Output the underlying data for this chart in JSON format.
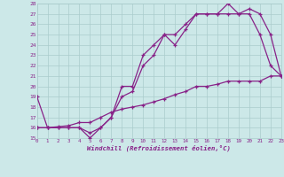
{
  "xlabel": "Windchill (Refroidissement éolien,°C)",
  "xlim": [
    0,
    23
  ],
  "ylim": [
    15,
    28
  ],
  "yticks": [
    15,
    16,
    17,
    18,
    19,
    20,
    21,
    22,
    23,
    24,
    25,
    26,
    27,
    28
  ],
  "xticks": [
    0,
    1,
    2,
    3,
    4,
    5,
    6,
    7,
    8,
    9,
    10,
    11,
    12,
    13,
    14,
    15,
    16,
    17,
    18,
    19,
    20,
    21,
    22,
    23
  ],
  "bg_color": "#cce8e8",
  "grid_color": "#aacccc",
  "line_color": "#882288",
  "line1_x": [
    0,
    1,
    2,
    3,
    4,
    5,
    6,
    7,
    8,
    9,
    10,
    11,
    12,
    13,
    14,
    15,
    16,
    17,
    18,
    19,
    20,
    21,
    22,
    23
  ],
  "line1_y": [
    19,
    16,
    16,
    16,
    16,
    15,
    16,
    17,
    20,
    20,
    23,
    24,
    25,
    24,
    25.5,
    27,
    27,
    27,
    28,
    27,
    27,
    25,
    22,
    21
  ],
  "line2_x": [
    0,
    1,
    2,
    3,
    4,
    5,
    6,
    7,
    8,
    9,
    10,
    11,
    12,
    13,
    14,
    15,
    16,
    17,
    18,
    19,
    20,
    21,
    22,
    23
  ],
  "line2_y": [
    16,
    16,
    16,
    16,
    16,
    15.5,
    16,
    17,
    19,
    19.5,
    22,
    23,
    25,
    25,
    26,
    27,
    27,
    27,
    27,
    27,
    27.5,
    27,
    25,
    21
  ],
  "line3_x": [
    0,
    1,
    2,
    3,
    4,
    5,
    6,
    7,
    8,
    9,
    10,
    11,
    12,
    13,
    14,
    15,
    16,
    17,
    18,
    19,
    20,
    21,
    22,
    23
  ],
  "line3_y": [
    16,
    16,
    16.1,
    16.2,
    16.5,
    16.5,
    17,
    17.5,
    17.8,
    18,
    18.2,
    18.5,
    18.8,
    19.2,
    19.5,
    20,
    20,
    20.2,
    20.5,
    20.5,
    20.5,
    20.5,
    21,
    21
  ]
}
